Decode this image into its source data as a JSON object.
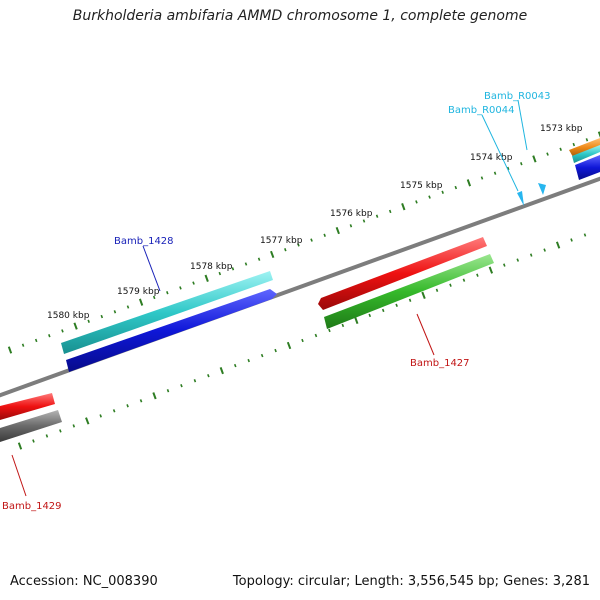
{
  "title": "Burkholderia ambifaria AMMD chromosome 1, complete genome",
  "footer": {
    "accession": "Accession: NC_008390",
    "stats": "Topology: circular; Length: 3,556,545 bp; Genes: 3,281"
  },
  "colors": {
    "backbone": "#7d7d7d",
    "tick": "#2e7d23",
    "cyan": "#2fc8c8",
    "blue": "#0f17d8",
    "red": "#ee1111",
    "green": "#35b92a",
    "gray": "#5f5f5f",
    "orange": "#ee8a18",
    "label_blue": "#1922b8",
    "label_red": "#c11515",
    "label_cyan": "#1fb5df"
  },
  "ticks": [
    {
      "label": "1573 kbp"
    },
    {
      "label": "1574 kbp"
    },
    {
      "label": "1575 kbp"
    },
    {
      "label": "1576 kbp"
    },
    {
      "label": "1577 kbp"
    },
    {
      "label": "1578 kbp"
    },
    {
      "label": "1579 kbp"
    },
    {
      "label": "1580 kbp"
    }
  ],
  "genes": {
    "bamb_1428": {
      "label": "Bamb_1428"
    },
    "bamb_1427": {
      "label": "Bamb_1427"
    },
    "bamb_1429": {
      "label": "Bamb_1429"
    },
    "bamb_r0043": {
      "label": "Bamb_R0043"
    },
    "bamb_r0044": {
      "label": "Bamb_R0044"
    }
  }
}
